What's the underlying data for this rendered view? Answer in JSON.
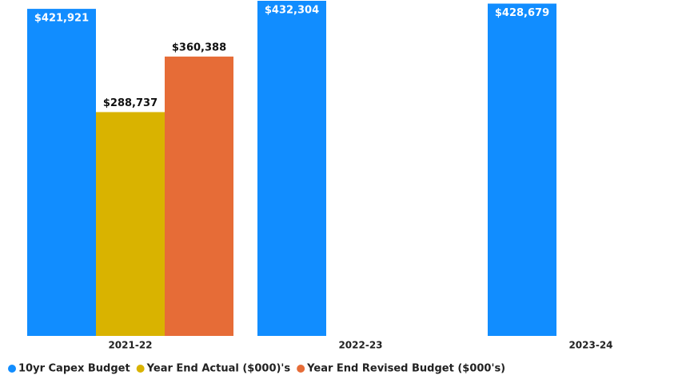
{
  "chart_data": {
    "type": "bar",
    "categories": [
      "2021-22",
      "2022-23",
      "2023-24"
    ],
    "series": [
      {
        "name": "10yr Capex Budget",
        "color": "#118dff",
        "values": [
          421921,
          432304,
          428679
        ],
        "value_labels": [
          "$421,921",
          "$432,304",
          "$428,679"
        ]
      },
      {
        "name": "Year End Actual ($000)'s",
        "color": "#d9b300",
        "values": [
          288737,
          null,
          null
        ],
        "value_labels": [
          "$288,737",
          null,
          null
        ]
      },
      {
        "name": "Year End Revised Budget ($000's)",
        "color": "#e66c37",
        "values": [
          360388,
          null,
          null
        ],
        "value_labels": [
          "$360,388",
          null,
          null
        ]
      }
    ],
    "ylim": [
      0,
      432304
    ],
    "legend": "bottom-left"
  }
}
